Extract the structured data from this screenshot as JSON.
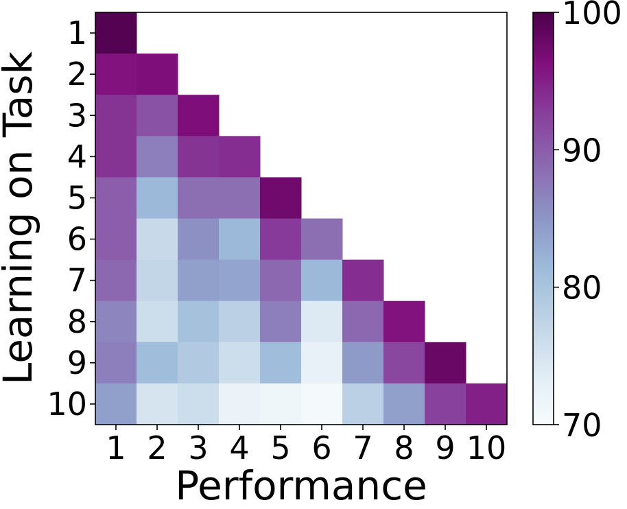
{
  "chart_data": {
    "type": "heatmap",
    "xlabel": "Performance",
    "ylabel": "Learning on Task",
    "x_categories": [
      "1",
      "2",
      "3",
      "4",
      "5",
      "6",
      "7",
      "8",
      "9",
      "10"
    ],
    "y_categories": [
      "1",
      "2",
      "3",
      "4",
      "5",
      "6",
      "7",
      "8",
      "9",
      "10"
    ],
    "values": [
      [
        99.5,
        null,
        null,
        null,
        null,
        null,
        null,
        null,
        null,
        null
      ],
      [
        96.0,
        96.5,
        null,
        null,
        null,
        null,
        null,
        null,
        null,
        null
      ],
      [
        93.5,
        91.0,
        96.5,
        null,
        null,
        null,
        null,
        null,
        null,
        null
      ],
      [
        93.5,
        87.0,
        93.5,
        94.0,
        null,
        null,
        null,
        null,
        null,
        null
      ],
      [
        90.0,
        81.5,
        88.5,
        88.5,
        97.5,
        null,
        null,
        null,
        null,
        null
      ],
      [
        90.0,
        76.5,
        85.5,
        81.5,
        93.0,
        88.5,
        null,
        null,
        null,
        null
      ],
      [
        89.0,
        77.0,
        84.0,
        83.5,
        89.0,
        81.5,
        94.0,
        null,
        null,
        null
      ],
      [
        86.5,
        76.0,
        80.5,
        78.0,
        87.0,
        74.0,
        89.0,
        96.0,
        null,
        null
      ],
      [
        87.0,
        81.0,
        79.0,
        76.0,
        81.0,
        72.5,
        84.5,
        92.0,
        98.0,
        null
      ],
      [
        84.0,
        75.0,
        76.0,
        72.0,
        71.5,
        70.5,
        78.0,
        84.0,
        92.5,
        95.0
      ]
    ],
    "colorbar": {
      "min": 70,
      "max": 100,
      "ticks": [
        "70",
        "80",
        "90",
        "100"
      ]
    },
    "colormap": [
      "#f7fcfd",
      "#e0ecf4",
      "#bfd3e6",
      "#9ebcda",
      "#8c96c6",
      "#8c6bb1",
      "#88419d",
      "#810f7c",
      "#4d004b"
    ]
  }
}
